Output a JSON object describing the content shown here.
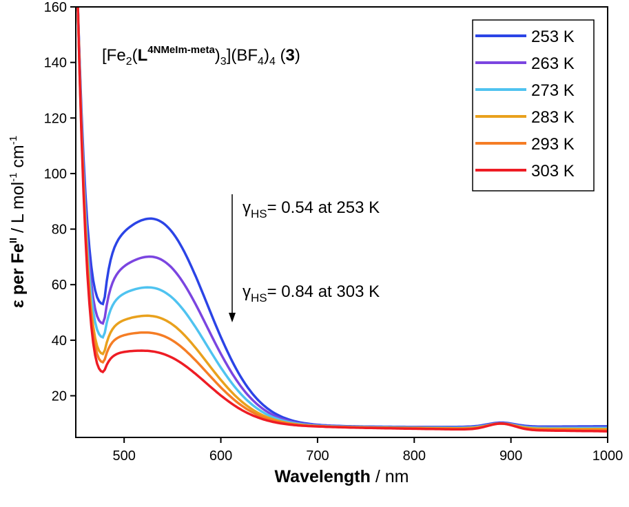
{
  "chart_data": {
    "type": "line",
    "xlabel_bold": "Wavelength",
    "xlabel_rest": " / nm",
    "ylabel": {
      "eps": "ε per ",
      "fe": "Fe",
      "fe_sup": "II",
      "unit_a": " / L mol",
      "unit_sup_a": "-1",
      "unit_b": " cm",
      "unit_sup_b": "-1"
    },
    "xlim": [
      450,
      1000
    ],
    "ylim": [
      5,
      160
    ],
    "xticks": [
      500,
      600,
      700,
      800,
      900,
      1000
    ],
    "yticks": [
      20,
      40,
      60,
      80,
      100,
      120,
      140,
      160
    ],
    "grid": false,
    "legend_position": "top-right",
    "title": {
      "open": "[Fe",
      "sub1": "2",
      "paren": "(",
      "L": "L",
      "sup": "4NMeIm-meta",
      "close": ")",
      "sub2": "3",
      "mid": "](BF",
      "sub3": "4",
      "close2": ")",
      "sub4": "4",
      "tail_open": " (",
      "bold3": "3",
      "tail_close": ")"
    },
    "annotations": [
      {
        "gamma": "γ",
        "sub": "HS",
        "text": "= 0.54 at 253 K"
      },
      {
        "gamma": "γ",
        "sub": "HS",
        "text": "= 0.84 at 303 K"
      }
    ],
    "series": [
      {
        "name": "253 K",
        "color": "#2b44e6",
        "min": 53,
        "peak": 82,
        "nir": 10.5,
        "tail": 9.0
      },
      {
        "name": "263 K",
        "color": "#7b45e0",
        "min": 46,
        "peak": 68.5,
        "nir": 10.2,
        "tail": 8.6
      },
      {
        "name": "273 K",
        "color": "#4fc3f0",
        "min": 41,
        "peak": 57.5,
        "nir": 10.0,
        "tail": 8.4
      },
      {
        "name": "283 K",
        "color": "#e9a11d",
        "min": 35,
        "peak": 47.5,
        "nir": 9.8,
        "tail": 8.0
      },
      {
        "name": "293 K",
        "color": "#f57d25",
        "min": 32,
        "peak": 41.5,
        "nir": 9.6,
        "tail": 7.6
      },
      {
        "name": "303 K",
        "color": "#ee1c24",
        "min": 28.5,
        "peak": 35,
        "nir": 9.5,
        "tail": 7.2
      }
    ]
  }
}
